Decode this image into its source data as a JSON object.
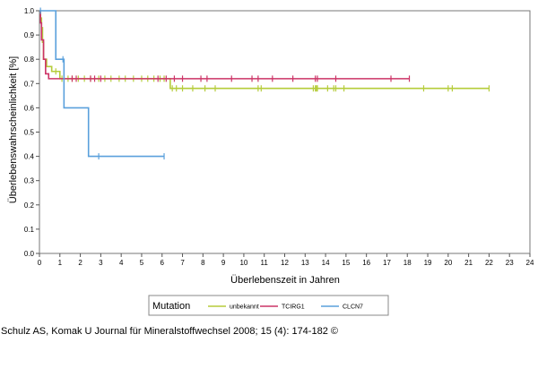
{
  "citation": "Schulz AS, Komak U Journal für Mineralstoffwechsel 2008; 15 (4): 174-182 ©",
  "chart_data": {
    "type": "line",
    "subtype": "kaplan-meier-step",
    "xlabel": "Überlebenszeit in Jahren",
    "ylabel": "Überlebenswahrscheinlichkeit [%]",
    "xlim": [
      0,
      24
    ],
    "ylim": [
      0,
      1
    ],
    "x_ticks": [
      "0",
      "1",
      "2",
      "3",
      "4",
      "5",
      "6",
      "7",
      "8",
      "9",
      "10",
      "11",
      "12",
      "13",
      "14",
      "15",
      "16",
      "17",
      "18",
      "19",
      "20",
      "21",
      "22",
      "23",
      "24"
    ],
    "y_ticks": [
      "0.0",
      "0.1",
      "0.2",
      "0.3",
      "0.4",
      "0.5",
      "0.6",
      "0.7",
      "0.8",
      "0.9",
      "1.0"
    ],
    "grid": false,
    "legend_title": "Mutation",
    "legend_position": "bottom",
    "series": [
      {
        "name": "unbekannt",
        "color": "#b5cc3a",
        "steps": [
          [
            0,
            1.0
          ],
          [
            0.05,
            0.97
          ],
          [
            0.1,
            0.93
          ],
          [
            0.15,
            0.87
          ],
          [
            0.2,
            0.8
          ],
          [
            0.35,
            0.77
          ],
          [
            0.6,
            0.75
          ],
          [
            1.0,
            0.72
          ],
          [
            6.4,
            0.68
          ],
          [
            22.0,
            0.68
          ]
        ],
        "censored": [
          0.8,
          1.1,
          1.4,
          1.6,
          1.9,
          2.2,
          2.5,
          2.9,
          3.2,
          3.5,
          3.9,
          4.2,
          4.6,
          5.0,
          5.3,
          5.6,
          5.9,
          6.1,
          6.5,
          6.7,
          7.0,
          7.5,
          8.1,
          8.6,
          10.7,
          10.85,
          13.4,
          13.5,
          13.55,
          13.6,
          14.1,
          14.4,
          14.5,
          14.9,
          18.8,
          20.0,
          20.2,
          22.0
        ]
      },
      {
        "name": "TCIRG1",
        "color": "#cc3366",
        "steps": [
          [
            0,
            1.0
          ],
          [
            0.05,
            0.95
          ],
          [
            0.1,
            0.88
          ],
          [
            0.2,
            0.8
          ],
          [
            0.3,
            0.74
          ],
          [
            0.45,
            0.72
          ],
          [
            18.1,
            0.72
          ]
        ],
        "censored": [
          1.6,
          1.8,
          2.5,
          2.7,
          3.0,
          5.8,
          6.2,
          6.6,
          7.0,
          7.9,
          8.2,
          9.4,
          10.4,
          10.7,
          11.4,
          12.4,
          13.5,
          13.6,
          14.5,
          17.2,
          18.1
        ]
      },
      {
        "name": "CLCN7",
        "color": "#5aa0dc",
        "steps": [
          [
            0,
            1.0
          ],
          [
            0.8,
            0.8
          ],
          [
            1.2,
            0.6
          ],
          [
            2.4,
            0.4
          ],
          [
            6.1,
            0.4
          ]
        ],
        "censored": [
          0.05,
          1.15,
          2.9,
          6.1
        ]
      }
    ]
  }
}
